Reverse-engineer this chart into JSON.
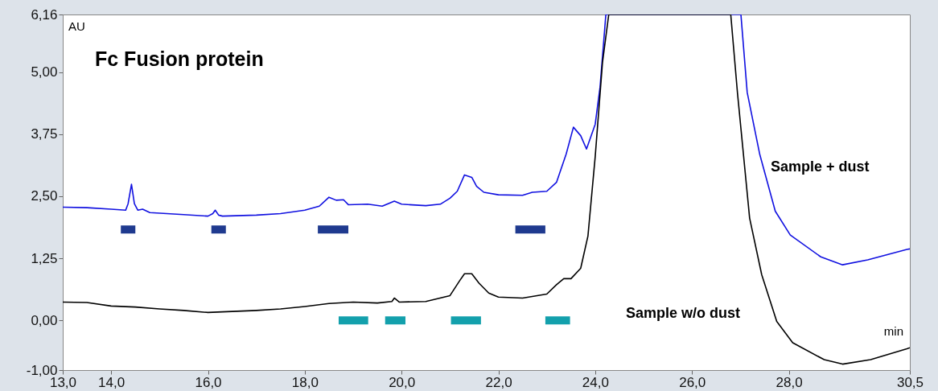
{
  "chart_data": {
    "type": "line",
    "title": "Fc Fusion protein",
    "xlabel": "min",
    "ylabel": "AU",
    "legend": false,
    "grid": false,
    "xlim": [
      13.0,
      30.5
    ],
    "ylim": [
      -1.0,
      6.16
    ],
    "xticks": [
      {
        "value": 13,
        "label": "13,0"
      },
      {
        "value": 14,
        "label": "14,0"
      },
      {
        "value": 16,
        "label": "16,0"
      },
      {
        "value": 18,
        "label": "18,0"
      },
      {
        "value": 20,
        "label": "20,0"
      },
      {
        "value": 22,
        "label": "22,0"
      },
      {
        "value": 24,
        "label": "24,0"
      },
      {
        "value": 26,
        "label": "26,0"
      },
      {
        "value": 28,
        "label": "28,0"
      },
      {
        "value": 30.5,
        "label": "30,5"
      }
    ],
    "yticks": [
      {
        "value": -1,
        "label": "-1,00"
      },
      {
        "value": 0,
        "label": "0,00"
      },
      {
        "value": 1.25,
        "label": "1,25"
      },
      {
        "value": 2.5,
        "label": "2,50"
      },
      {
        "value": 3.75,
        "label": "3,75"
      },
      {
        "value": 5,
        "label": "5,00"
      },
      {
        "value": 6.16,
        "label": "6,16"
      }
    ],
    "series": [
      {
        "name": "Sample + dust",
        "color": "#1010e0",
        "x": [
          13.0,
          13.5,
          14.0,
          14.3,
          14.35,
          14.42,
          14.48,
          14.55,
          14.65,
          14.8,
          15.5,
          16.0,
          16.1,
          16.15,
          16.22,
          16.3,
          17.0,
          17.5,
          18.0,
          18.3,
          18.5,
          18.65,
          18.8,
          18.9,
          19.3,
          19.6,
          19.85,
          20.0,
          20.5,
          20.8,
          21.0,
          21.15,
          21.3,
          21.45,
          21.55,
          21.7,
          22.0,
          22.5,
          22.7,
          23.0,
          23.2,
          23.4,
          23.55,
          23.7,
          23.82,
          24.0,
          24.1,
          24.22,
          27.01,
          27.14,
          27.4,
          27.72,
          28.03,
          28.66,
          29.11,
          29.63,
          30.44,
          30.5
        ],
        "values": [
          2.28,
          2.27,
          2.24,
          2.22,
          2.35,
          2.74,
          2.35,
          2.22,
          2.24,
          2.17,
          2.13,
          2.1,
          2.15,
          2.22,
          2.12,
          2.1,
          2.12,
          2.15,
          2.22,
          2.3,
          2.48,
          2.42,
          2.43,
          2.33,
          2.34,
          2.3,
          2.4,
          2.34,
          2.31,
          2.34,
          2.46,
          2.6,
          2.93,
          2.88,
          2.7,
          2.58,
          2.53,
          2.52,
          2.58,
          2.6,
          2.78,
          3.35,
          3.89,
          3.72,
          3.45,
          3.95,
          4.7,
          6.16,
          6.16,
          4.59,
          3.34,
          2.2,
          1.72,
          1.28,
          1.12,
          1.22,
          1.43,
          1.44
        ]
      },
      {
        "name": "Sample w/o dust",
        "color": "#000000",
        "x": [
          13.0,
          13.5,
          14.0,
          14.5,
          15.0,
          15.5,
          16.0,
          16.5,
          17.0,
          17.5,
          18.0,
          18.5,
          19.0,
          19.5,
          19.8,
          19.85,
          19.95,
          20.5,
          21.0,
          21.2,
          21.3,
          21.45,
          21.6,
          21.8,
          22.0,
          22.5,
          23.0,
          23.2,
          23.35,
          23.5,
          23.7,
          23.85,
          24.0,
          24.15,
          24.28,
          26.8,
          26.94,
          27.19,
          27.44,
          27.75,
          28.08,
          28.73,
          29.11,
          29.69,
          30.44,
          30.5
        ],
        "values": [
          0.37,
          0.36,
          0.29,
          0.27,
          0.23,
          0.2,
          0.16,
          0.18,
          0.2,
          0.23,
          0.28,
          0.34,
          0.37,
          0.35,
          0.38,
          0.45,
          0.37,
          0.38,
          0.5,
          0.8,
          0.94,
          0.94,
          0.75,
          0.55,
          0.47,
          0.45,
          0.53,
          0.72,
          0.84,
          0.84,
          1.05,
          1.7,
          3.3,
          5.19,
          6.16,
          6.16,
          4.57,
          2.06,
          0.92,
          -0.02,
          -0.45,
          -0.79,
          -0.88,
          -0.79,
          -0.57,
          -0.55
        ]
      },
      {
        "color": "#1f3a8f",
        "x": [
          14.2,
          14.5,
          14.6,
          16.07,
          16.37,
          16.5,
          18.27,
          18.9,
          19.0,
          22.35,
          22.97
        ],
        "values": [
          1.83,
          1.83,
          null,
          1.83,
          1.83,
          null,
          1.83,
          1.83,
          null,
          1.83,
          1.83
        ]
      },
      {
        "color": "#13a0ac",
        "x": [
          18.7,
          19.31,
          19.4,
          19.66,
          20.08,
          20.2,
          21.02,
          21.64,
          21.8,
          22.97,
          23.48
        ],
        "values": [
          0.0,
          0.0,
          null,
          0.0,
          0.0,
          null,
          0.0,
          0.0,
          null,
          0.0,
          0.0
        ]
      }
    ]
  }
}
